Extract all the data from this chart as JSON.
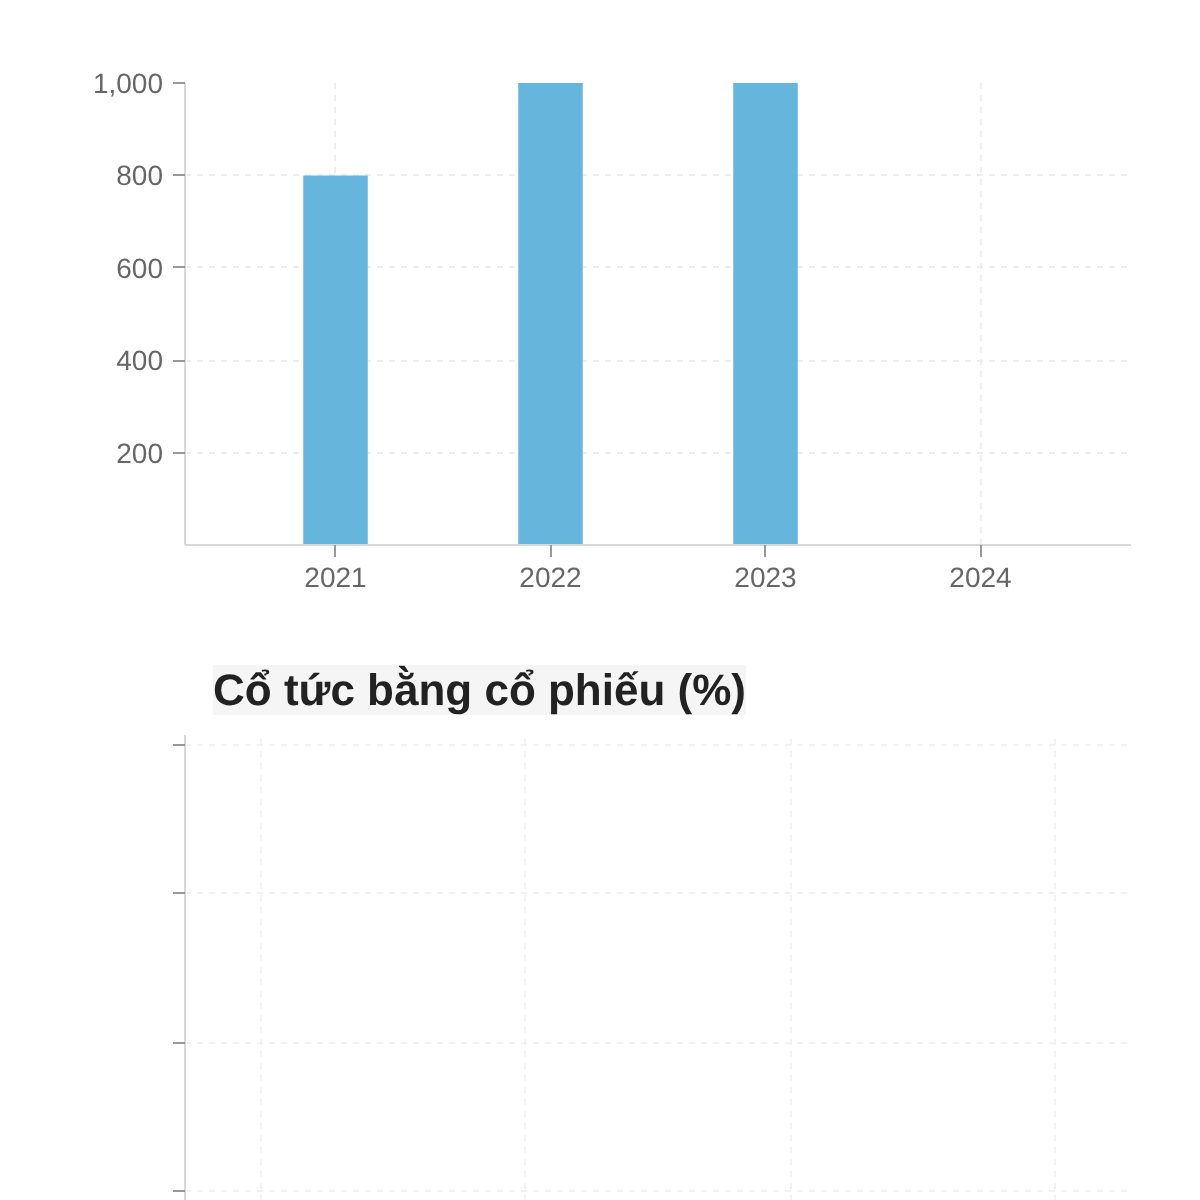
{
  "chart_data": [
    {
      "type": "bar",
      "categories": [
        "2021",
        "2022",
        "2023",
        "2024"
      ],
      "values": [
        800,
        1000,
        1000,
        null
      ],
      "color": "#65b5dc",
      "ylim": [
        0,
        1000
      ],
      "yticks": [
        200,
        400,
        600,
        800,
        {
          "value": 1000,
          "label": "1,000"
        }
      ],
      "grid": true
    },
    {
      "type": "other",
      "title": "Cổ tức bằng cổ phiếu (%)"
    }
  ]
}
